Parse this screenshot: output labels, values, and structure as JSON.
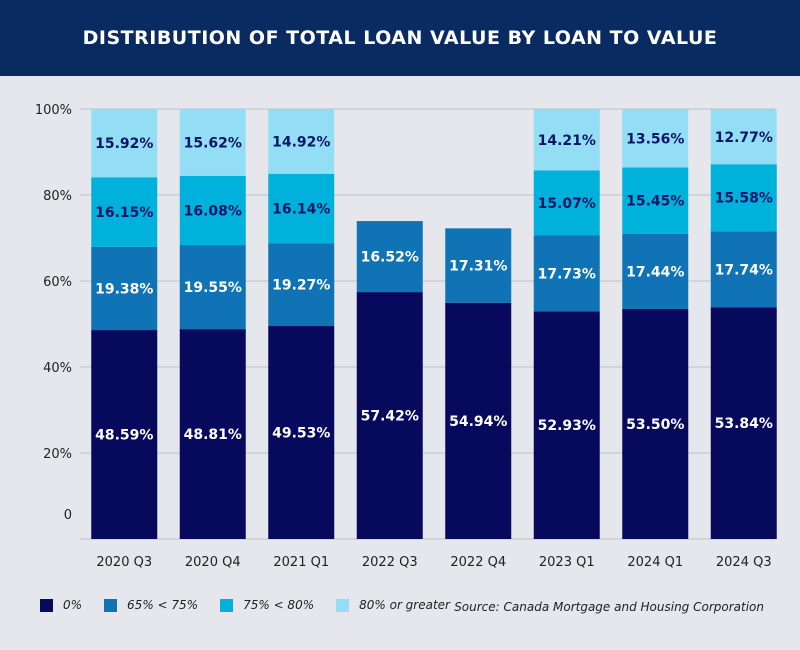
{
  "header": {
    "title": "DISTRIBUTION OF TOTAL LOAN VALUE BY LOAN TO VALUE"
  },
  "source": "Source: Canada Mortgage and Housing Corporation",
  "colors": {
    "0%": "#070a5c",
    "65% < 75%": "#0f73b5",
    "75% < 80%": "#00b1dc",
    "80% or greater": "#93ddf5",
    "header_bg": "#0a2b61",
    "background": "#e6e7ec"
  },
  "chart_data": {
    "type": "bar",
    "stacked": true,
    "categories": [
      "2020 Q3",
      "2020 Q4",
      "2021 Q1",
      "2022 Q3",
      "2022 Q4",
      "2023 Q1",
      "2024 Q1",
      "2024 Q3"
    ],
    "series": [
      {
        "name": "0%",
        "values": [
          48.59,
          48.81,
          49.53,
          57.42,
          54.94,
          52.93,
          53.5,
          53.84
        ],
        "labels": [
          "48.59%",
          "48.81%",
          "49.53%",
          "57.42%",
          "54.94%",
          "52.93%",
          "53.50%",
          "53.84%"
        ]
      },
      {
        "name": "65% < 75%",
        "values": [
          19.38,
          19.55,
          19.27,
          16.52,
          17.31,
          17.73,
          17.44,
          17.74
        ],
        "labels": [
          "19.38%",
          "19.55%",
          "19.27%",
          "16.52%",
          "17.31%",
          "17.73%",
          "17.44%",
          "17.74%"
        ]
      },
      {
        "name": "75% < 80%",
        "values": [
          16.15,
          16.08,
          16.14,
          null,
          null,
          15.07,
          15.45,
          15.58
        ],
        "labels": [
          "16.15%",
          "16.08%",
          "16.14%",
          "",
          "",
          "15.07%",
          "15.45%",
          "15.58%"
        ]
      },
      {
        "name": "80% or greater",
        "values": [
          15.92,
          15.62,
          14.92,
          null,
          null,
          14.21,
          13.56,
          12.77
        ],
        "labels": [
          "15.92%",
          "15.62%",
          "14.92%",
          "",
          "",
          "14.21%",
          "13.56%",
          "12.77%"
        ]
      }
    ],
    "ylim": [
      0,
      100
    ],
    "yticks": [
      "0",
      "20%",
      "40%",
      "60%",
      "80%",
      "100%"
    ],
    "grid": true,
    "legend_position": "bottom-left",
    "xlabel": "",
    "ylabel": ""
  }
}
